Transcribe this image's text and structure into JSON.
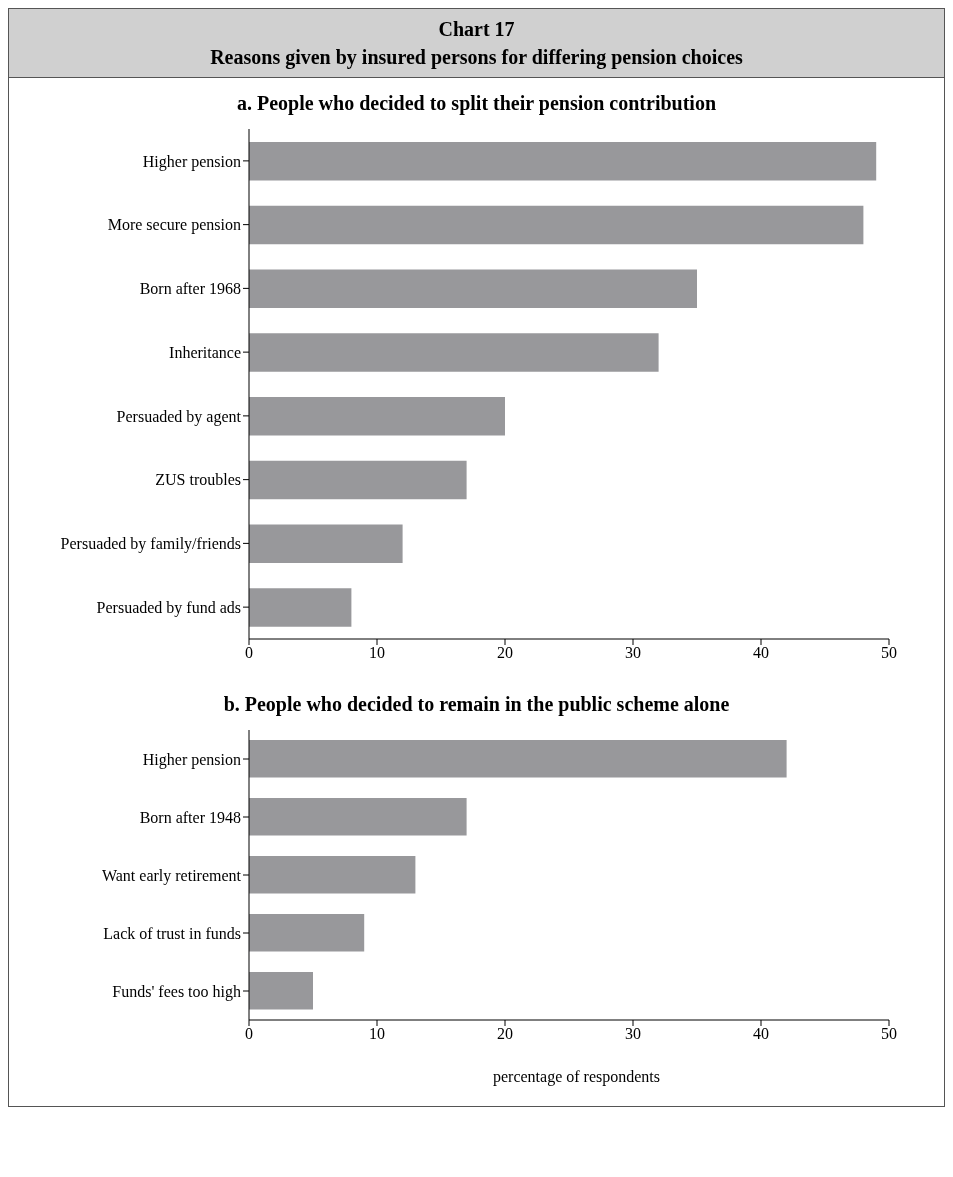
{
  "chart_data": [
    {
      "type": "bar",
      "orientation": "horizontal",
      "title": "a. People who decided to split their pension contribution",
      "annotations": [
        "Chart 17",
        "Reasons given by insured persons for differing pension choices"
      ],
      "categories": [
        "Higher pension",
        "More secure pension",
        "Born after 1968",
        "Inheritance",
        "Persuaded by agent",
        "ZUS troubles",
        "Persuaded by family/friends",
        "Persuaded by fund ads"
      ],
      "values": [
        49,
        48,
        35,
        32,
        20,
        17,
        12,
        8
      ],
      "color": "#98989b",
      "xlim": [
        0,
        50
      ],
      "xticks": [
        0,
        10,
        20,
        30,
        40,
        50
      ],
      "grid": false,
      "legend": false
    },
    {
      "type": "bar",
      "orientation": "horizontal",
      "title": "b. People who decided to remain in the public scheme alone",
      "xlabel": "percentage of respondents",
      "categories": [
        "Higher pension",
        "Born after 1948",
        "Want early retirement",
        "Lack of trust in funds",
        "Funds' fees too high"
      ],
      "values": [
        42,
        17,
        13,
        9,
        5
      ],
      "color": "#98989b",
      "xlim": [
        0,
        50
      ],
      "xticks": [
        0,
        10,
        20,
        30,
        40,
        50
      ],
      "grid": false,
      "legend": false
    }
  ]
}
